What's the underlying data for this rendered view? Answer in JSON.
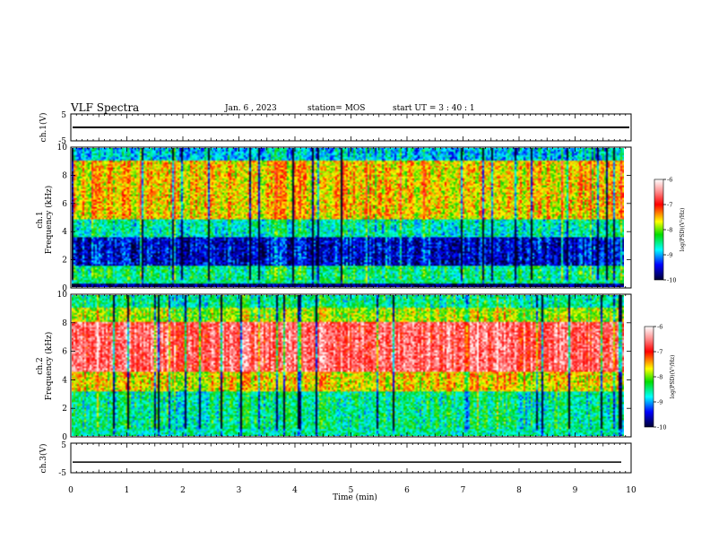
{
  "header": {
    "title": "VLF Spectra",
    "date": "Jan. 6 , 2023",
    "station": "station= MOS",
    "start": "start  UT =  3 : 40 : 1"
  },
  "chart_data": {
    "type": "heatmap",
    "xlabel": "Time  (min)",
    "xlim": [
      0,
      10
    ],
    "xticks": [
      "0",
      "1",
      "2",
      "3",
      "4",
      "5",
      "6",
      "7",
      "8",
      "9",
      "10"
    ],
    "panels": [
      {
        "id": "ch1-voltage",
        "type": "line",
        "ylabel": "ch.1(V)",
        "ylim": [
          -5,
          5
        ],
        "yticks": [
          "5",
          "-5"
        ],
        "level": 0
      },
      {
        "id": "ch1-spectrum",
        "type": "heatmap",
        "ylabel": "ch.1",
        "ylabel2": "Frequency  (kHz)",
        "ylim": [
          0,
          10
        ],
        "yticks": [
          "0",
          "2",
          "4",
          "6",
          "8",
          "10"
        ],
        "colorbar": {
          "label": "log(PSD)(V²/Hz)",
          "range": [
            -10,
            -6
          ],
          "ticks": [
            "-6",
            "-7",
            "-8",
            "-9",
            "-10"
          ]
        }
      },
      {
        "id": "ch2-spectrum",
        "type": "heatmap",
        "ylabel": "ch.2",
        "ylabel2": "Frequency  (kHz)",
        "ylim": [
          0,
          10
        ],
        "yticks": [
          "0",
          "2",
          "4",
          "6",
          "8",
          "10"
        ],
        "colorbar": {
          "label": "log(PSD)(V²/Hz)",
          "range": [
            -10,
            -6
          ],
          "ticks": [
            "-6",
            "-7",
            "-8",
            "-9",
            "-10"
          ]
        }
      },
      {
        "id": "ch3-voltage",
        "type": "line",
        "ylabel": "ch.3(V)",
        "ylim": [
          -5,
          5
        ],
        "yticks": [
          "5",
          "-5"
        ],
        "level": -1.4
      }
    ]
  }
}
